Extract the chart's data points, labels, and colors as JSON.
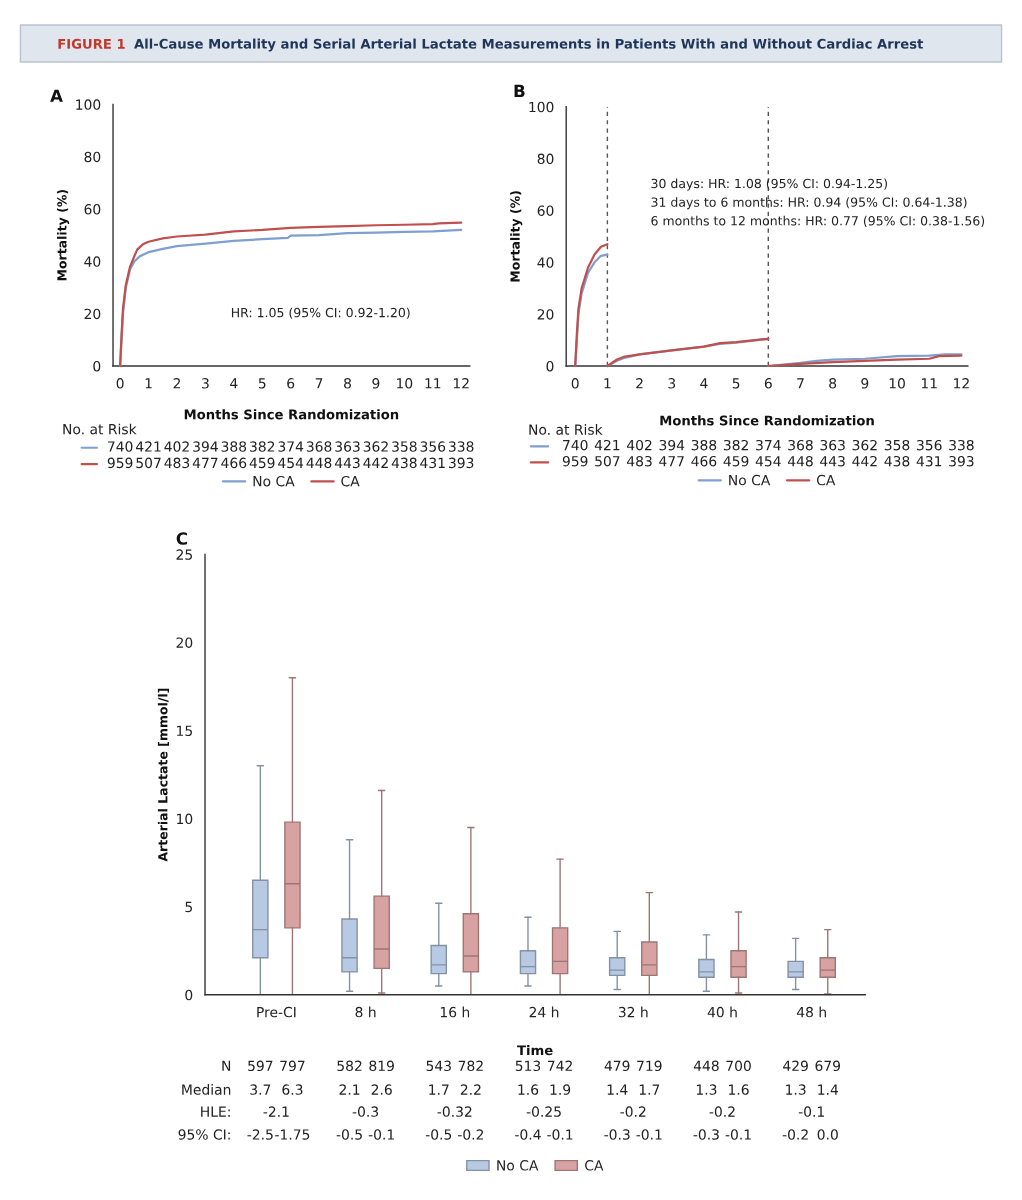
{
  "chart_data": [
    {
      "type": "line",
      "title": "FIGURE 1 All-Cause Mortality and Serial Arterial Lactate Measurements in Patients With and Without Cardiac Arrest",
      "subtitle": "A",
      "xlabel": "Months Since Randomization",
      "ylabel": "Mortality (%)",
      "xlim": [
        -0.25,
        12.3
      ],
      "ylim": [
        0,
        100
      ],
      "xticks": [
        0,
        1,
        2,
        3,
        4,
        5,
        6,
        7,
        8,
        9,
        10,
        11,
        12
      ],
      "yticks": [
        0,
        20,
        40,
        60,
        80,
        100
      ],
      "legend": "bottom",
      "series": [
        {
          "name": "No CA",
          "color": "#7f9fd0",
          "x": [
            0,
            0.05,
            0.1,
            0.2,
            0.35,
            0.5,
            0.7,
            1,
            1.5,
            2,
            3,
            4,
            5,
            5.9,
            6,
            7,
            8,
            9,
            10,
            11,
            12
          ],
          "values": [
            0,
            10,
            20,
            30,
            37,
            40,
            42,
            43.5,
            44.8,
            45.8,
            46.8,
            47.8,
            48.5,
            49,
            49.8,
            50,
            50.8,
            51,
            51.3,
            51.5,
            52
          ]
        },
        {
          "name": "CA",
          "color": "#c0504d",
          "x": [
            0,
            0.05,
            0.1,
            0.2,
            0.35,
            0.5,
            0.6,
            0.8,
            1,
            1.5,
            2,
            3,
            4,
            5,
            6,
            7,
            8,
            9,
            10,
            11,
            11.2,
            12
          ],
          "values": [
            0,
            12,
            22,
            31,
            38,
            42,
            44.5,
            46.5,
            47.5,
            48.8,
            49.5,
            50.2,
            51.5,
            52,
            52.8,
            53.2,
            53.5,
            53.8,
            54,
            54.2,
            54.5,
            54.8
          ]
        }
      ],
      "annotations": [
        "HR: 1.05 (95% CI: 0.92-1.20)",
        "No. at Risk",
        "740 421 402 394 388 382 374 368 363 362 358 356 338",
        "959 507 483 477 466 459 454 448 443 442 438 431 393"
      ]
    },
    {
      "type": "line",
      "subtitle": "B",
      "xlabel": "Months Since Randomization",
      "ylabel": "Mortality (%)",
      "xlim": [
        -0.28,
        12.2
      ],
      "ylim": [
        0,
        100
      ],
      "xticks": [
        0,
        1,
        2,
        3,
        4,
        5,
        6,
        7,
        8,
        9,
        10,
        11,
        12
      ],
      "yticks": [
        0,
        20,
        40,
        60,
        80,
        100
      ],
      "legend": "bottom",
      "ref_lines": [
        {
          "axis": "x",
          "value": 1,
          "color": "#555555",
          "line_style": "dashed"
        },
        {
          "axis": "x",
          "value": 6,
          "color": "#555555",
          "line_style": "dashed"
        }
      ],
      "series": [
        {
          "name": "No CA",
          "color": "#7f9fd0",
          "x": [
            0,
            0.05,
            0.1,
            0.2,
            0.4,
            0.6,
            0.8,
            1
          ],
          "values": [
            0,
            10,
            20,
            28,
            36,
            40,
            42.5,
            43
          ]
        },
        {
          "name": "CA",
          "color": "#c0504d",
          "x": [
            0,
            0.05,
            0.1,
            0.2,
            0.4,
            0.6,
            0.8,
            1
          ],
          "values": [
            0,
            12,
            22,
            30,
            38,
            43,
            46,
            47
          ]
        },
        {
          "color": "#7f9fd0",
          "x": [
            1,
            1.3,
            1.5,
            2,
            3,
            4,
            4.5,
            5,
            6
          ],
          "values": [
            0,
            2,
            3,
            4.5,
            6,
            7.5,
            8.5,
            9,
            10.5
          ]
        },
        {
          "color": "#c0504d",
          "x": [
            1,
            1.3,
            1.5,
            2,
            3,
            4,
            4.5,
            5,
            6
          ],
          "values": [
            0,
            2.5,
            3.5,
            4.5,
            6,
            7.5,
            8.8,
            9.2,
            10.5
          ]
        },
        {
          "color": "#7f9fd0",
          "x": [
            6,
            7,
            7.5,
            8,
            9,
            10,
            11,
            11.5,
            12
          ],
          "values": [
            0,
            1.2,
            2,
            2.5,
            2.8,
            3.8,
            4,
            4.5,
            4.5
          ]
        },
        {
          "color": "#c0504d",
          "x": [
            6,
            7,
            8,
            9,
            10,
            11,
            11.3,
            12
          ],
          "values": [
            0,
            0.8,
            1.5,
            2,
            2.5,
            2.8,
            3.8,
            4
          ]
        }
      ],
      "annotations": [
        "30 days: HR: 1.08 (95% CI: 0.94-1.25)",
        "31 days to 6 months: HR: 0.94 (95% CI: 0.64-1.38)",
        "6 months to 12 months: HR: 0.77 (95% CI: 0.38-1.56)",
        "No. at Risk",
        "740 421 402 394 388 382 374 368 363 362 358 356 338",
        "959 507 483 477 466 459 454 448 443 442 438 431 393"
      ]
    },
    {
      "type": "box",
      "subtitle": "C",
      "xlabel": "Time",
      "ylabel": "Arterial Lactate [mmol/l]",
      "ylim": [
        0,
        25
      ],
      "yticks": [
        0,
        5,
        10,
        15,
        20,
        25
      ],
      "legend": "bottom",
      "categories": [
        "Pre-CI",
        "8 h",
        "16 h",
        "24 h",
        "32 h",
        "40 h",
        "48 h"
      ],
      "series": [
        {
          "name": "No CA",
          "color": "#b8c9e3",
          "boxes": [
            {
              "low": 0,
              "q1": 2.1,
              "median": 3.7,
              "q3": 6.5,
              "high": 13
            },
            {
              "low": 0.2,
              "q1": 1.3,
              "median": 2.1,
              "q3": 4.3,
              "high": 8.8
            },
            {
              "low": 0.5,
              "q1": 1.2,
              "median": 1.7,
              "q3": 2.8,
              "high": 5.2
            },
            {
              "low": 0.5,
              "q1": 1.2,
              "median": 1.6,
              "q3": 2.5,
              "high": 4.4
            },
            {
              "low": 0.3,
              "q1": 1.1,
              "median": 1.4,
              "q3": 2.1,
              "high": 3.6
            },
            {
              "low": 0.2,
              "q1": 1.0,
              "median": 1.3,
              "q3": 2.0,
              "high": 3.4
            },
            {
              "low": 0.3,
              "q1": 1.0,
              "median": 1.3,
              "q3": 1.9,
              "high": 3.2
            }
          ]
        },
        {
          "name": "CA",
          "color": "#d9a2a2",
          "boxes": [
            {
              "low": 0,
              "q1": 3.8,
              "median": 6.3,
              "q3": 9.8,
              "high": 18
            },
            {
              "low": 0.1,
              "q1": 1.5,
              "median": 2.6,
              "q3": 5.6,
              "high": 11.6
            },
            {
              "low": 0,
              "q1": 1.3,
              "median": 2.2,
              "q3": 4.6,
              "high": 9.5
            },
            {
              "low": 0,
              "q1": 1.2,
              "median": 1.9,
              "q3": 3.8,
              "high": 7.7
            },
            {
              "low": 0,
              "q1": 1.1,
              "median": 1.7,
              "q3": 3.0,
              "high": 5.8
            },
            {
              "low": 0.1,
              "q1": 1.0,
              "median": 1.6,
              "q3": 2.5,
              "high": 4.7
            },
            {
              "low": 0.05,
              "q1": 1.0,
              "median": 1.4,
              "q3": 2.1,
              "high": 3.7
            }
          ]
        }
      ],
      "annotations": [
        "N  597 797  582 819  543 782  513 742  479 719  448 700  429 679",
        "Median  3.7 6.3  2.1 2.6  1.7 2.2  1.6 1.9  1.4 1.7  1.3 1.6  1.3 1.4",
        "HLE:  -2.1  -0.3  -0.32  -0.25  -0.2  -0.2  -0.1",
        "95% CI:  -2.5 -1.75  -0.5 -0.1  -0.5 -0.2  -0.4 -0.1  -0.3 -0.1  -0.3 -0.1  -0.2 0.0"
      ]
    }
  ]
}
